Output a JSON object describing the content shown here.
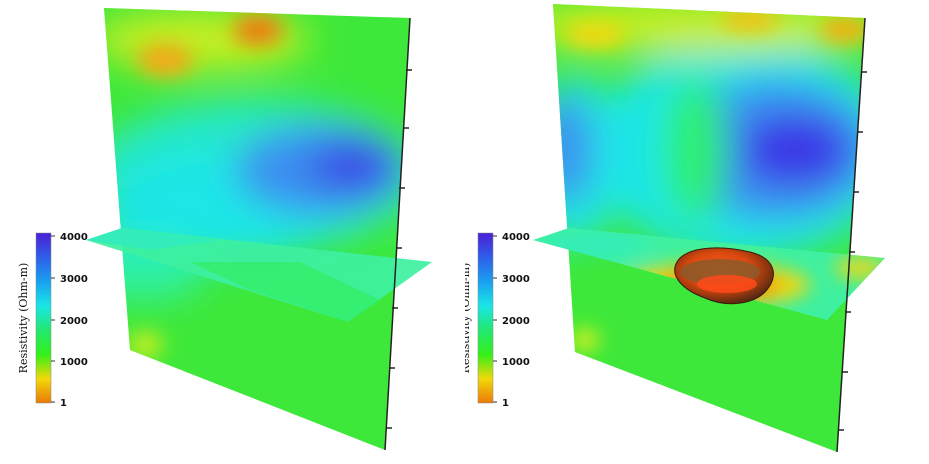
{
  "colorbar": {
    "title": "Resistivity (Ohm-m)",
    "ticks": [
      "4000",
      "3000",
      "2000",
      "1000",
      "1"
    ],
    "stops": [
      "#4b1fd6",
      "#2f5ee8",
      "#1aa0f0",
      "#19e6e6",
      "#22e870",
      "#33f019",
      "#f2d80a",
      "#ea7a0a"
    ]
  },
  "panels": [
    {
      "id": "left",
      "has_anomaly": false
    },
    {
      "id": "right",
      "has_anomaly": true
    }
  ]
}
